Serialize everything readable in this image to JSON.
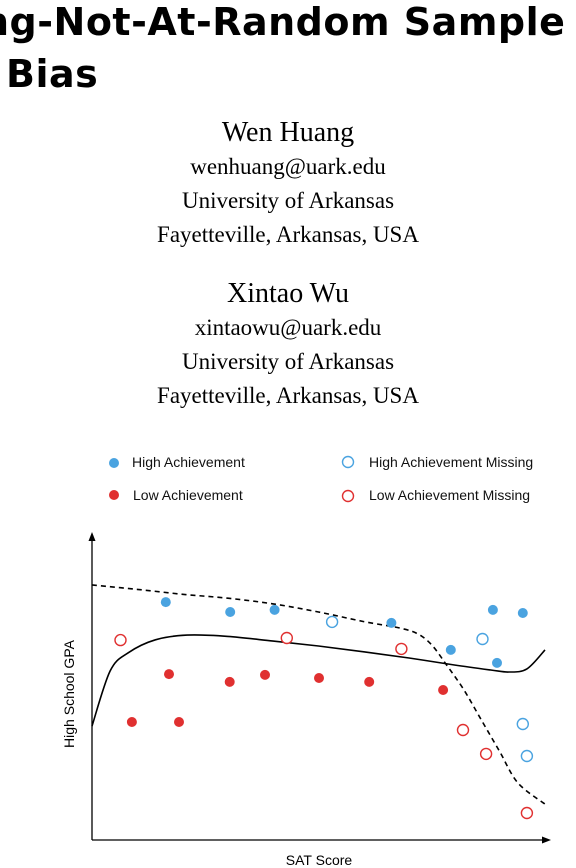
{
  "title": {
    "line1": "ng-Not-At-Random Sample",
    "line2": "Bias"
  },
  "authors": [
    {
      "name": "Wen Huang",
      "email": "wenhuang@uark.edu",
      "affiliation": "University of Arkansas",
      "location": "Fayetteville, Arkansas, USA"
    },
    {
      "name": "Xintao Wu",
      "email": "xintaowu@uark.edu",
      "affiliation": "University of Arkansas",
      "location": "Fayetteville, Arkansas, USA"
    }
  ],
  "colors": {
    "high": "#4aa3e0",
    "low": "#e03030",
    "axis": "#000000"
  },
  "chart_data": {
    "type": "scatter",
    "xlabel": "SAT Score",
    "ylabel": "High School GPA",
    "xlim": [
      0,
      100
    ],
    "ylim": [
      0,
      100
    ],
    "grid": false,
    "legend_placement": "top",
    "legend": {
      "high": "High Achievement",
      "high_missing": "High Achievement Missing",
      "low": "Low Achievement",
      "low_missing": "Low Achievement Missing"
    },
    "series": [
      {
        "name": "High Achievement",
        "key": "high",
        "filled": true,
        "points": [
          [
            16.3,
            91.5
          ],
          [
            30.5,
            87.7
          ],
          [
            40.3,
            88.5
          ],
          [
            66.1,
            83.5
          ],
          [
            79.2,
            73.1
          ],
          [
            88.5,
            88.5
          ],
          [
            89.4,
            68.1
          ],
          [
            95.1,
            87.3
          ]
        ]
      },
      {
        "name": "High Achievement Missing",
        "key": "high",
        "filled": false,
        "points": [
          [
            53.0,
            83.9
          ],
          [
            86.2,
            77.3
          ],
          [
            95.1,
            44.6
          ],
          [
            96.0,
            32.3
          ]
        ]
      },
      {
        "name": "Low Achievement",
        "key": "low",
        "filled": true,
        "points": [
          [
            8.8,
            45.4
          ],
          [
            17.0,
            63.8
          ],
          [
            19.2,
            45.4
          ],
          [
            30.4,
            60.8
          ],
          [
            38.2,
            63.5
          ],
          [
            50.1,
            62.3
          ],
          [
            61.2,
            60.8
          ],
          [
            77.5,
            57.7
          ]
        ]
      },
      {
        "name": "Low Achievement Missing",
        "key": "low",
        "filled": false,
        "points": [
          [
            6.3,
            76.9
          ],
          [
            43.0,
            77.7
          ],
          [
            68.3,
            73.5
          ],
          [
            81.9,
            42.3
          ],
          [
            87.0,
            33.1
          ],
          [
            96.0,
            10.4
          ]
        ]
      }
    ],
    "curves": [
      {
        "style": "solid",
        "points": [
          [
            0,
            43.8
          ],
          [
            4,
            65.0
          ],
          [
            8,
            72.0
          ],
          [
            14,
            77.0
          ],
          [
            21,
            78.8
          ],
          [
            30,
            78.3
          ],
          [
            40,
            76.5
          ],
          [
            50,
            74.6
          ],
          [
            60,
            72.4
          ],
          [
            70,
            70.0
          ],
          [
            80,
            67.3
          ],
          [
            88,
            65.4
          ],
          [
            92,
            64.6
          ],
          [
            96,
            65.8
          ],
          [
            100,
            73.1
          ]
        ]
      },
      {
        "style": "dashed",
        "points": [
          [
            0,
            98.1
          ],
          [
            10,
            96.4
          ],
          [
            20,
            94.5
          ],
          [
            30,
            93.0
          ],
          [
            40,
            90.8
          ],
          [
            50,
            87.7
          ],
          [
            60,
            84.0
          ],
          [
            68,
            81.5
          ],
          [
            72,
            79.2
          ],
          [
            75,
            75.0
          ],
          [
            78,
            68.0
          ],
          [
            82,
            58.0
          ],
          [
            86,
            46.0
          ],
          [
            90,
            34.0
          ],
          [
            94,
            22.0
          ],
          [
            100,
            13.8
          ]
        ]
      }
    ]
  }
}
